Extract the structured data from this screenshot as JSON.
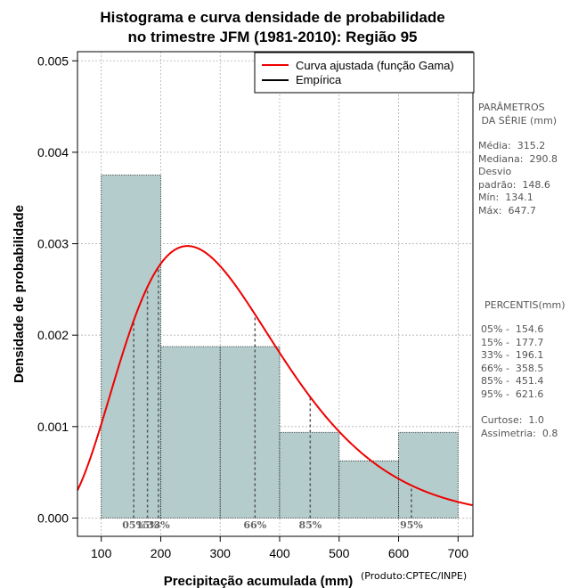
{
  "chart_data": {
    "type": "histogram",
    "title": [
      "Histograma e curva densidade de probabilidade",
      "no trimestre JFM (1981-2010): Região 95"
    ],
    "xlabel": "Precipitação acumulada (mm)",
    "ylabel": "Densidade de probabilidade",
    "xlim": [
      60,
      725
    ],
    "ylim": [
      -0.0002,
      0.0051
    ],
    "x_ticks": [
      100,
      200,
      300,
      400,
      500,
      600,
      700
    ],
    "x_tick_labels": [
      "100",
      "200",
      "300",
      "400",
      "500",
      "600",
      "700"
    ],
    "y_ticks": [
      0.0,
      0.001,
      0.002,
      0.003,
      0.004,
      0.005
    ],
    "y_tick_labels": [
      "0.000",
      "0.001",
      "0.002",
      "0.003",
      "0.004",
      "0.005"
    ],
    "grid": true,
    "bins": [
      {
        "from": 100,
        "to": 200,
        "density": 0.00375
      },
      {
        "from": 200,
        "to": 300,
        "density": 0.001875
      },
      {
        "from": 300,
        "to": 400,
        "density": 0.001875
      },
      {
        "from": 400,
        "to": 500,
        "density": 0.0009375
      },
      {
        "from": 500,
        "to": 600,
        "density": 0.000625
      },
      {
        "from": 600,
        "to": 700,
        "density": 0.0009375
      }
    ],
    "gamma_fit": {
      "shape": 4.5,
      "scale": 70
    },
    "percentiles": [
      {
        "label": "05%",
        "value": 154.6
      },
      {
        "label": "15%",
        "value": 177.7
      },
      {
        "label": "33%",
        "value": 196.1
      },
      {
        "label": "66%",
        "value": 358.5
      },
      {
        "label": "85%",
        "value": 451.4
      },
      {
        "label": "95%",
        "value": 621.6
      }
    ],
    "legend": [
      {
        "label": "Curva ajustada (função Gama)",
        "color": "#ee0000"
      },
      {
        "label": "Empírica",
        "color": "#000000"
      }
    ],
    "colors": {
      "bar": "#b4cccc",
      "curve": "#ee0000",
      "percentile_line": "#555555"
    }
  },
  "side_panel": {
    "params_title": "PARÂMETROS\n DA SÉRIE (mm)",
    "params_body": "Média:  315.2\nMediana:  290.8\nDesvio\npadrão:  148.6\nMín:  134.1\nMáx:  647.7",
    "percentis_title": "PERCENTIS(mm)",
    "percentis_body": "05% -  154.6\n15% -  177.7\n33% -  196.1\n66% -  358.5\n85% -  451.4\n95% -  621.6",
    "shape_body": "Curtose:  1.0\nAssimetria:  0.8"
  },
  "credit": "(Produto:CPTEC/INPE)"
}
